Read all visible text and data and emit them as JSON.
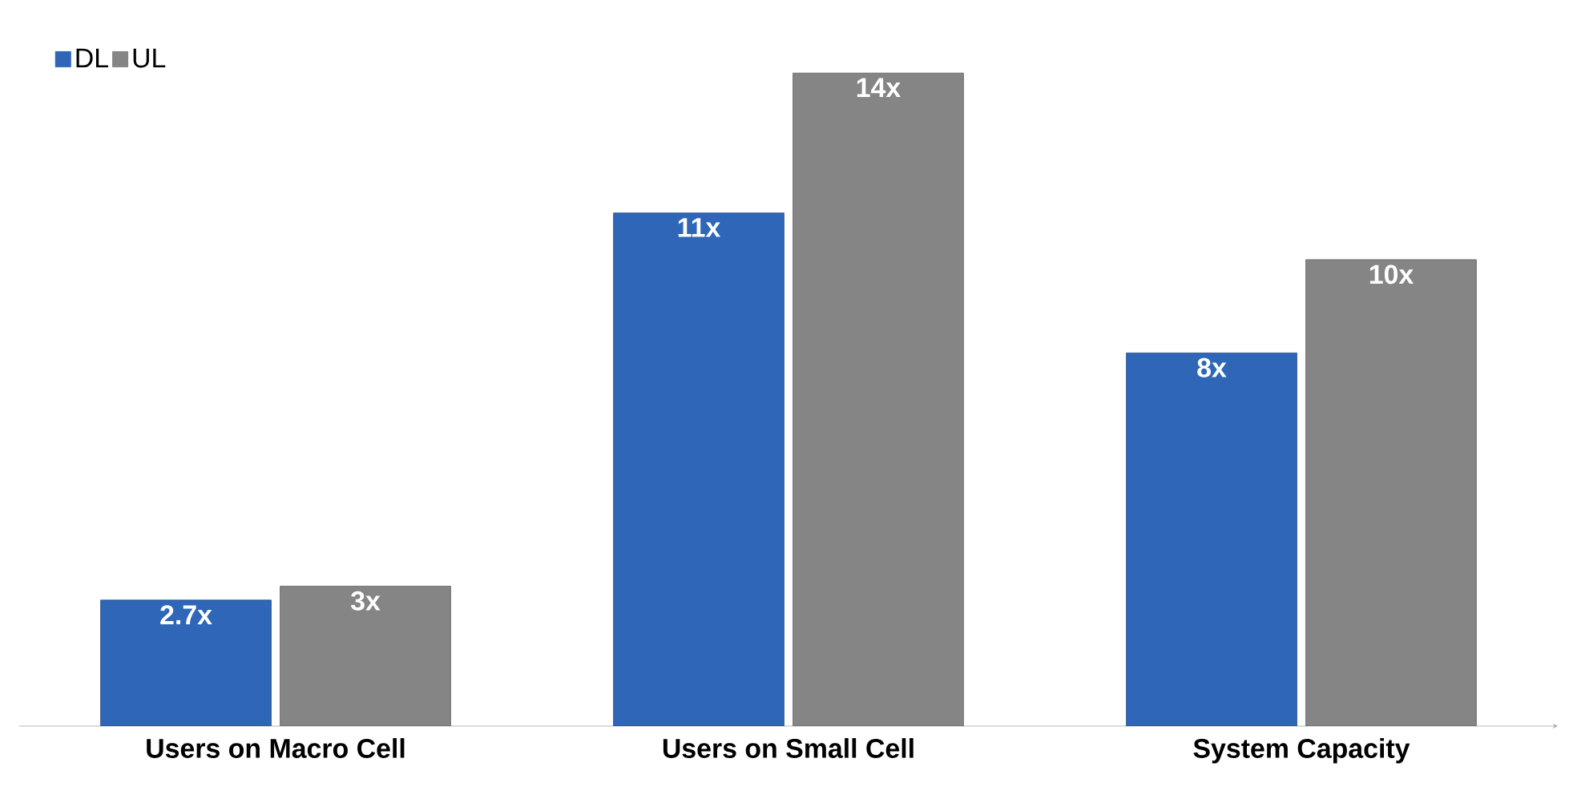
{
  "chart_data": {
    "type": "bar",
    "categories": [
      "Users on Macro Cell",
      "Users on Small Cell",
      "System Capacity"
    ],
    "series": [
      {
        "name": "DL",
        "color": "#2f66b8",
        "values": [
          2.7,
          11,
          8
        ],
        "value_labels": [
          "2.7x",
          "11x",
          "8x"
        ]
      },
      {
        "name": "UL",
        "color": "#858585",
        "values": [
          3,
          14,
          10
        ],
        "value_labels": [
          "3x",
          "14x",
          "10x"
        ]
      }
    ],
    "legend": "top left"
  }
}
